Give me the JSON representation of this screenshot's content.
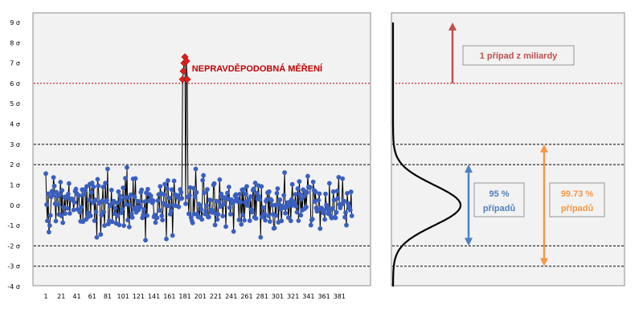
{
  "chart_data": [
    {
      "type": "line",
      "title": "",
      "xlabel": "",
      "ylabel": "",
      "xlim": [
        1,
        390
      ],
      "ylim": [
        -4,
        9
      ],
      "y_tick_labels": [
        "9 σ",
        "8 σ",
        "7 σ",
        "6 σ",
        "5 σ",
        "4 σ",
        "3 σ",
        "2 σ",
        "1 σ",
        "0 σ",
        "-1 σ",
        "-2 σ",
        "-3 σ",
        "-4 σ"
      ],
      "x_tick_labels": [
        "1",
        "21",
        "41",
        "61",
        "81",
        "101",
        "121",
        "141",
        "161",
        "181",
        "201",
        "221",
        "241",
        "261",
        "281",
        "301",
        "321",
        "341",
        "361",
        "381"
      ],
      "grid": false,
      "reference_lines": [
        {
          "y": 6,
          "color": "#c00000",
          "style": "dotted"
        },
        {
          "y": 3,
          "color": "#000000",
          "style": "dashed"
        },
        {
          "y": 2,
          "color": "#000000",
          "style": "dashed"
        },
        {
          "y": -2,
          "color": "#000000",
          "style": "dashed"
        },
        {
          "y": -3,
          "color": "#000000",
          "style": "dashed"
        }
      ],
      "series": [
        {
          "values": [
            1.56,
            0.03,
            -0.77,
            0.57,
            -1.32,
            -1.0,
            -0.5,
            0.41,
            0.69,
            0.52,
            1.37,
            0.95,
            0.07,
            -0.78,
            0.64,
            0.44,
            0.03,
            -0.45,
            0.52,
            1.14,
            -0.52,
            0.73,
            -0.86,
            -0.1,
            0.4,
            -0.41,
            0.42,
            0.38,
            -0.15,
            0.55,
            1.07,
            -0.4,
            0.31,
            0.32,
            0.31,
            0.25,
            -0.23,
            0.14,
            0.69,
            0.8,
            0.59,
            -0.2,
            0.47,
            0.48,
            -0.34,
            -0.79,
            -0.1,
            0.77,
            -0.81,
            0.52,
            0.77,
            0.74,
            -0.7,
            0.93,
            -0.6,
            -0.38,
            0.25,
            1.04,
            -0.52,
            0.63,
            1.1,
            0.13,
            0.91,
            -0.76,
            0.26,
            -0.33,
            -1.58,
            1.28,
            0.96,
            0.1,
            0.15,
            -1.44,
            -0.49,
            0.22,
            0.9,
            -0.33,
            -1.0,
            1.09,
            0.17,
            0.24,
            1.79,
            -0.92,
            -0.76,
            -0.02,
            0.04,
            0.75,
            -0.81,
            0.13,
            0.2,
            -0.41,
            -0.15,
            -0.89,
            0.11,
            -0.51,
            0.67,
            -0.97,
            0.46,
            0.25,
            -0.37,
            -0.2,
            0.86,
            -1.0,
            0.39,
            1.33,
            0.04,
            1.86,
            -0.73,
            0.38,
            -1.07,
            0.01,
            0.52,
            -0.44,
            -0.6,
            1.3,
            -0.19,
            0.41,
            1.32,
            -0.35,
            -0.08,
            0.2,
            -0.23,
            0.18,
            -0.08,
            0.64,
            0.76,
            -0.62,
            -0.47,
            -0.21,
            0.18,
            -1.72,
            0.61,
            -0.51,
            0.79,
            0.21,
            0.54,
            0.27,
            0.46,
            0.27,
            0.12,
            0.22,
            -0.57,
            -0.48,
            -0.85,
            -0.6,
            -0.62,
            0.23,
            0.53,
            -0.26,
            0.93,
            0.59,
            -0.52,
            -0.73,
            0.1,
            0.52,
            1.04,
            0.01,
            -1.66,
            0.83,
            1.22,
            -0.03,
            0.36,
            -0.44,
            -0.28,
            0.77,
            -1.49,
            0.0,
            1.2,
            0.53,
            -0.02,
            0.49,
            0.49,
            0.41,
            -0.08,
            0.31,
            0.78,
            0.64,
            0.34,
            0.22,
            -0.65,
            0.26,
            0.62,
            0.07,
            -0.38,
            0.66,
            0.41,
            -0.42,
            0.48,
            0.87,
            -0.61,
            -0.76,
            -0.87,
            0.84,
            -0.43,
            0.41,
            1.79,
            0.63,
            -0.43,
            -0.57,
            0.06,
            -0.59,
            -0.02,
            -0.21,
            -0.7,
            1.23,
            1.47,
            0.61,
            -0.43,
            -0.29,
            -0.01,
            0.78,
            -0.58,
            -0.58,
            0.26,
            0.25,
            -0.23,
            -0.36,
            -0.27,
            1.0,
            1.07,
            -0.97,
            -0.43,
            0.2,
            -0.7,
            -0.45,
            0.18,
            1.26,
            -0.06,
            0.56,
            0.42,
            -0.53,
            0.05,
            0.33,
            0.38,
            -1.05,
            0.37,
            0.6,
            0.3,
            0.9,
            -0.12,
            -0.44,
            0.28,
            0.11,
            0.1,
            -1.29,
            0.2,
            0.46,
            0.53,
            0.34,
            0.31,
            0.17,
            -0.72,
            0.55,
            0.16,
            -0.94,
            0.76,
            -0.48,
            0.78,
            -0.74,
            0.14,
            0.56,
            0.93,
            -0.01,
            0.24,
            0.28,
            -0.76,
            0.43,
            -0.21,
            -0.34,
            0.74,
            0.81,
            -0.59,
            1.1,
            -0.65,
            0.59,
            0.32,
            0.97,
            0.42,
            0.28,
            -1.58,
            0.93,
            -0.58,
            -0.52,
            -0.12,
            -0.41,
            -0.74,
            0.2,
            0.28,
            0.62,
            -0.52,
            0.67,
            -0.8,
            0.29,
            0.24,
            0.01,
            -0.45,
            -1.14,
            -1.12,
            0.01,
            -0.5,
            0.59,
            0.82,
            -0.84,
            0.04,
            0.27,
            -0.18,
            -0.77,
            -0.04,
            -0.13,
            0.49,
            1.61,
            -0.39,
            -0.11,
            0.13,
            0.01,
            -0.61,
            0.0,
            0.17,
            -0.77,
            0.28,
            1.03,
            0.0,
            0.16,
            0.03,
            0.54,
            -0.05,
            -0.34,
            0.82,
            -0.76,
            1.17,
            0.54,
            -0.49,
            0.31,
            -0.24,
            0.77,
            0.45,
            -0.17,
            0.65,
            -0.09,
            0.63,
            1.43,
            0.9,
            0.87,
            0.89,
            -0.98,
            -0.73,
            -0.68,
            1.15,
            0.74,
            0.18,
            0.67,
            -0.14,
            -0.3,
            -0.25,
            0.25,
            0.57,
            -1.15,
            -0.14,
            -0.14,
            -0.2,
            -0.38,
            -0.27,
            -0.7,
            0.56,
            0.01,
            -0.15,
            -0.4,
            -0.42,
            1.08,
            -0.22,
            -0.55,
            -0.63,
            -0.16,
            0.67,
            0.26,
            -0.6,
            -0.62,
            -0.35,
            0.7,
            0.34,
            1.38,
            0.04,
            -0.13,
            0.04,
            0.04,
            1.31,
            0.17,
            0.2,
            -0.59,
            -0.36,
            -0.98,
            0.59,
            0.1,
            -0.06,
            -0.16,
            -0.24,
            0.66,
            -0.52
          ],
          "outliers": [
            {
              "x": 178,
              "y": 6.2
            },
            {
              "x": 179,
              "y": 6.6
            },
            {
              "x": 180,
              "y": 7.0
            },
            {
              "x": 181,
              "y": 7.3
            },
            {
              "x": 183,
              "y": 7.1
            },
            {
              "x": 184,
              "y": 6.2
            }
          ],
          "color": "#3a5fbf",
          "outlier_color": "#e02020"
        }
      ],
      "annotations": [
        {
          "text": "NEPRAVDĚPODOBNÁ MĚŘENÍ",
          "x": 190,
          "y": 6.7,
          "color": "#c00000"
        }
      ]
    },
    {
      "type": "line",
      "title": "",
      "xlabel": "",
      "ylabel": "",
      "ylim": [
        -4,
        9
      ],
      "reference_lines": [
        {
          "y": 6,
          "color": "#c00000",
          "style": "dotted"
        },
        {
          "y": 3,
          "color": "#000000",
          "style": "dashed"
        },
        {
          "y": 2,
          "color": "#000000",
          "style": "dashed"
        },
        {
          "y": -2,
          "color": "#000000",
          "style": "dashed"
        },
        {
          "y": -3,
          "color": "#000000",
          "style": "dashed"
        }
      ],
      "curve": "normal",
      "arrows": [
        {
          "from_y": 6,
          "to_y": 9,
          "color": "#c0504d",
          "label": "1 případ z miliardy"
        },
        {
          "from_y": -2,
          "to_y": 2,
          "color": "#4f81bd",
          "label": [
            "95 %",
            "případů"
          ]
        },
        {
          "from_y": -3,
          "to_y": 3,
          "color": "#f79646",
          "label": [
            "99.73 %",
            "případů"
          ]
        }
      ]
    }
  ]
}
